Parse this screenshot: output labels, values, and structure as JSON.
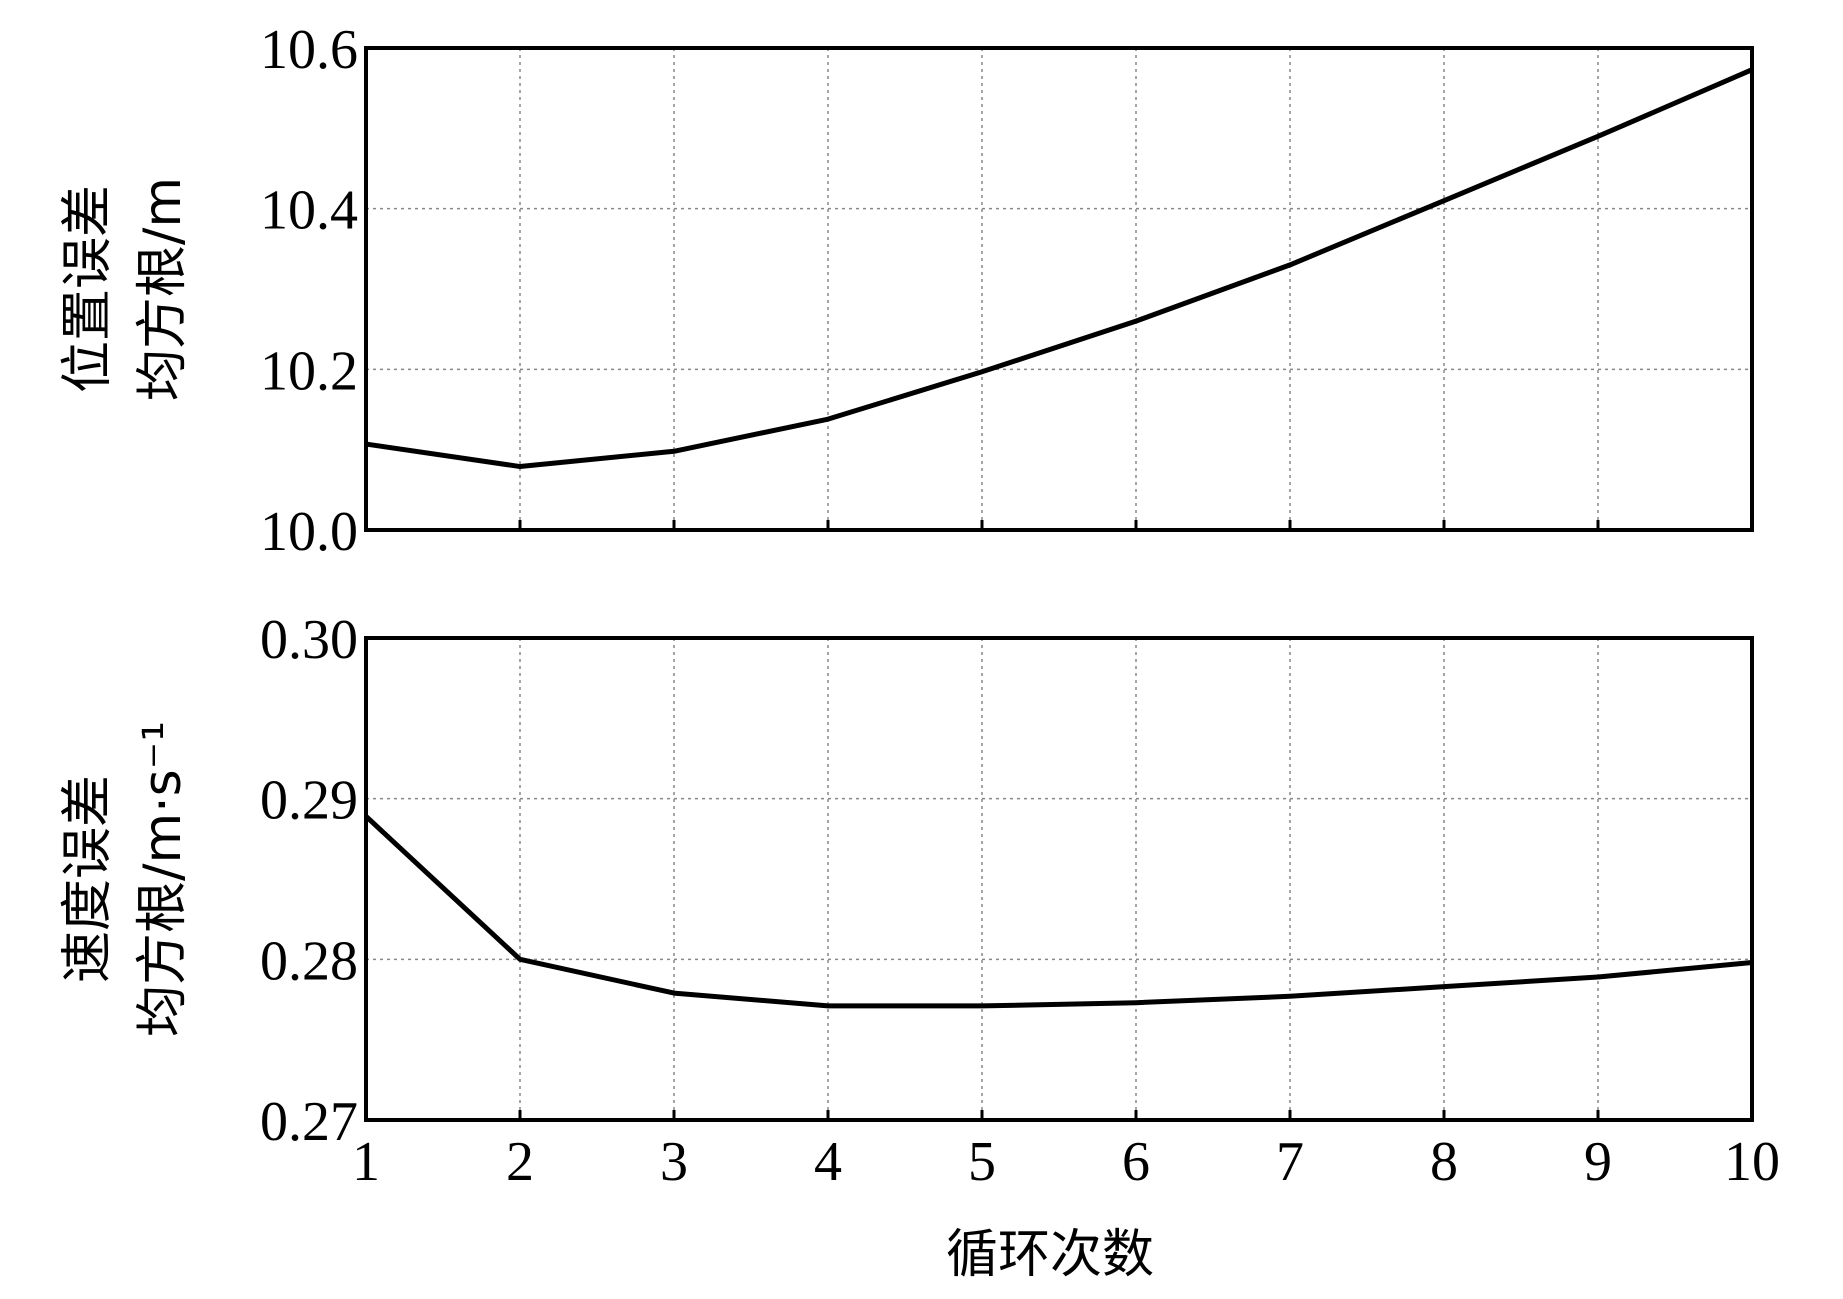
{
  "chart_data": [
    {
      "type": "line",
      "ylabel_lines": [
        "位置误差",
        "均方根/m"
      ],
      "x": [
        1,
        2,
        3,
        4,
        5,
        6,
        7,
        8,
        9,
        10
      ],
      "series": [
        {
          "values": [
            10.107,
            10.079,
            10.098,
            10.138,
            10.197,
            10.26,
            10.33,
            10.41,
            10.49,
            10.573
          ]
        }
      ],
      "xlim": [
        1,
        10
      ],
      "ylim": [
        10.0,
        10.6
      ],
      "yticks": [
        "10.0",
        "10.2",
        "10.4",
        "10.6"
      ],
      "yticks_values": [
        10.0,
        10.2,
        10.4,
        10.6
      ],
      "grid": true
    },
    {
      "type": "line",
      "ylabel_lines": [
        "速度误差",
        "均方根/m·s⁻¹"
      ],
      "x": [
        1,
        2,
        3,
        4,
        5,
        6,
        7,
        8,
        9,
        10
      ],
      "series": [
        {
          "values": [
            0.2889,
            0.28,
            0.2779,
            0.2771,
            0.2771,
            0.2773,
            0.2777,
            0.2783,
            0.2789,
            0.2798
          ]
        }
      ],
      "xlim": [
        1,
        10
      ],
      "ylim": [
        0.27,
        0.3
      ],
      "yticks": [
        "0.27",
        "0.28",
        "0.29",
        "0.30"
      ],
      "yticks_values": [
        0.27,
        0.28,
        0.29,
        0.3
      ],
      "grid": true
    }
  ],
  "shared_x": {
    "xlabel": "循环次数",
    "xticks": [
      "1",
      "2",
      "3",
      "4",
      "5",
      "6",
      "7",
      "8",
      "9",
      "10"
    ],
    "xticks_values": [
      1,
      2,
      3,
      4,
      5,
      6,
      7,
      8,
      9,
      10
    ]
  }
}
